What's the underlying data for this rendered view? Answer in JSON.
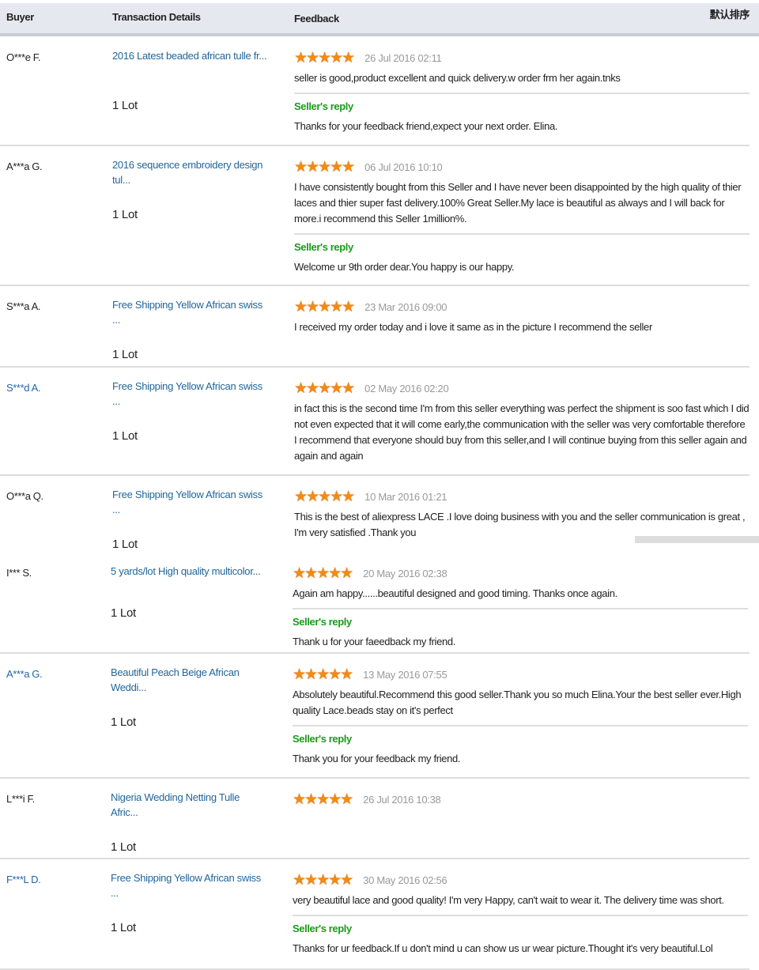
{
  "header": {
    "buyer": "Buyer",
    "transaction": "Transaction Details",
    "feedback": "Feedback",
    "sort": "默认排序"
  },
  "colors": {
    "link": "#2266aa",
    "reply": "#1a9a1a",
    "star": "#f28a14",
    "date": "#999999"
  },
  "reply_label": "Seller's reply",
  "stars_icon": "five-star-rating",
  "reviews": [
    {
      "buyer": "O***e F.",
      "buyer_link": false,
      "product": "2016 Latest beaded african tulle fr...",
      "qty": "1 Lot",
      "rating": 5,
      "date": "26 Jul 2016 02:11",
      "text": "seller is good,product excellent and quick delivery.w order frm her again.tnks",
      "reply": "Thanks for your feedback friend,expect your next order. Elina."
    },
    {
      "buyer": "A***a G.",
      "buyer_link": false,
      "product": "2016 sequence embroidery design tul...",
      "qty": "1 Lot",
      "rating": 5,
      "date": "06 Jul 2016 10:10",
      "text": "I have consistently bought from this Seller and I have never been disappointed by the high quality of thier laces and thier super fast delivery.100% Great Seller.My lace is beautiful as always and I will back for more.i recommend this Seller 1million%.",
      "reply": "Welcome ur 9th order dear.You happy is our happy."
    },
    {
      "buyer": "S***a A.",
      "buyer_link": false,
      "product": "Free Shipping Yellow African swiss ...",
      "qty": "1 Lot",
      "rating": 5,
      "date": "23 Mar 2016 09:00",
      "text": "I received my order today and i love it same as in the picture I recommend the seller",
      "reply": null
    },
    {
      "buyer": "S***d A.",
      "buyer_link": true,
      "product": "Free Shipping Yellow African swiss ...",
      "qty": "1 Lot",
      "rating": 5,
      "date": "02 May 2016 02:20",
      "text": "in fact this is the second time I'm from this seller everything was perfect the shipment is soo fast which I did not even expected that it will come early,the communication with the seller was very comfortable therefore I recommend that everyone should buy from this seller,and I will continue buying from this seller again and again and again",
      "reply": null
    },
    {
      "buyer": "O***a Q.",
      "buyer_link": false,
      "product": "Free Shipping Yellow African swiss ...",
      "qty": "1 Lot",
      "rating": 5,
      "date": "10 Mar 2016 01:21",
      "text": "This is the best of aliexpress LACE .I love doing business with you and the seller communication is great , I'm very satisfied .Thank you",
      "reply": null
    },
    {
      "buyer": "I*** S.",
      "buyer_link": false,
      "product": "5 yards/lot High quality multicolor...",
      "qty": "1 Lot",
      "rating": 5,
      "date": "20 May 2016 02:38",
      "text": "Again am happy......beautiful designed and good timing. Thanks once again.",
      "reply": "Thank u for your faeedback my friend."
    },
    {
      "buyer": "A***a G.",
      "buyer_link": true,
      "product": "Beautiful Peach Beige African Weddi...",
      "qty": "1 Lot",
      "rating": 5,
      "date": "13 May 2016 07:55",
      "text": "Absolutely beautiful.Recommend this good seller.Thank you so much Elina.Your the best seller ever.High quality Lace.beads stay on it's perfect",
      "reply": "Thank you for your feedback my friend."
    },
    {
      "buyer": "L***i F.",
      "buyer_link": false,
      "product": "Nigeria Wedding Netting Tulle Afric...",
      "qty": "1 Lot",
      "rating": 5,
      "date": "26 Jul 2016 10:38",
      "text": "",
      "reply": null
    },
    {
      "buyer": "F***L D.",
      "buyer_link": true,
      "product": "Free Shipping Yellow African swiss ...",
      "qty": "1 Lot",
      "rating": 5,
      "date": "30 May 2016 02:56",
      "text": "very beautiful lace and good quality! I'm very Happy, can't wait to wear it. The delivery time was short.",
      "reply": "Thanks for ur feedback.If u don't mind u can show us ur wear picture.Thought it's very beautiful.Lol"
    }
  ]
}
